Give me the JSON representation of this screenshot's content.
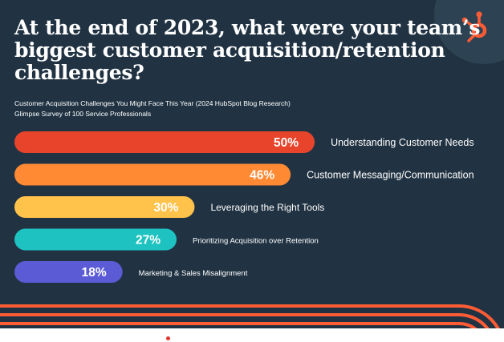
{
  "header": {
    "title_lines": [
      "At the end of 2023, what were your team’s",
      "biggest customer acquisition/retention",
      "challenges?"
    ],
    "subtitle_lines": [
      "Customer Acquisition Challenges You Might Face This Year (2024 HubSpot Blog Research)",
      "Glimpse Survey of 100 Service Professionals"
    ]
  },
  "logo": {
    "icon": "hubspot-sprocket-icon",
    "color": "#ff5c35"
  },
  "colors": {
    "background": "#213343",
    "stripes": "#ff5c35"
  },
  "chart_data": {
    "type": "bar",
    "orientation": "horizontal",
    "categories": [
      "Understanding Customer Needs",
      "Customer Messaging/Communication",
      "Leveraging the Right Tools",
      "Prioritizing Acquisition over Retention",
      "Marketing & Sales Misalignment"
    ],
    "values": [
      50,
      46,
      30,
      27,
      18
    ],
    "value_labels": [
      "50%",
      "46%",
      "30%",
      "27%",
      "18%"
    ],
    "colors": [
      "#e8442b",
      "#ff8a33",
      "#ffc24a",
      "#1ec3c1",
      "#5b5bd6"
    ],
    "xlim": [
      0,
      54
    ],
    "grid": false,
    "legend": "none"
  }
}
